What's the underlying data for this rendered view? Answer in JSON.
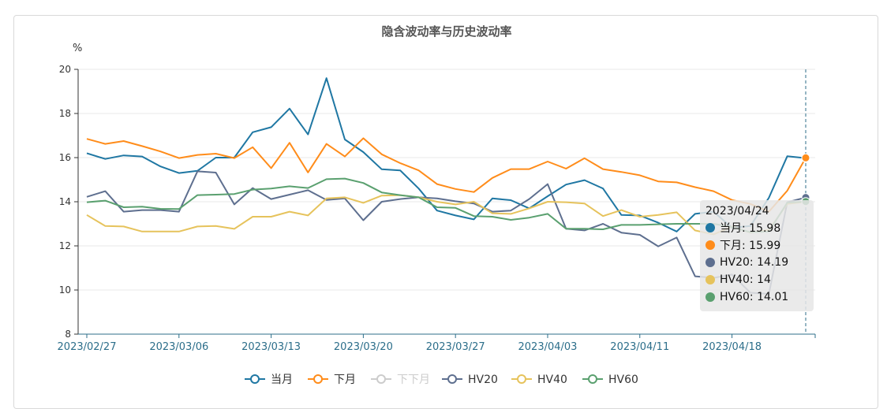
{
  "chart_data": {
    "type": "line",
    "title": "隐含波动率与历史波动率",
    "ylabel": "%",
    "ylim": [
      8,
      20
    ],
    "yticks": [
      8,
      10,
      12,
      14,
      16,
      18,
      20
    ],
    "x_tick_labels": [
      "2023/02/27",
      "2023/03/06",
      "2023/03/13",
      "2023/03/20",
      "2023/03/27",
      "2023/04/03",
      "2023/04/11",
      "2023/04/18"
    ],
    "x_tick_index": [
      0,
      5,
      10,
      15,
      20,
      25,
      30,
      35
    ],
    "n_points": 40,
    "series": [
      {
        "name": "当月",
        "color": "#1f77a3",
        "enabled": true,
        "values": [
          16.2,
          15.94,
          16.1,
          16.05,
          15.6,
          15.3,
          15.4,
          16.0,
          16.0,
          17.15,
          17.38,
          18.22,
          17.05,
          19.6,
          16.82,
          16.25,
          15.47,
          15.42,
          14.6,
          13.6,
          13.38,
          13.2,
          14.15,
          14.07,
          13.7,
          14.25,
          14.78,
          14.98,
          14.6,
          13.4,
          13.38,
          13.05,
          12.65,
          13.45,
          13.55,
          12.82,
          12.9,
          14.18,
          16.06,
          15.98
        ]
      },
      {
        "name": "下月",
        "color": "#ff8c1a",
        "enabled": true,
        "values": [
          16.85,
          16.62,
          16.75,
          16.52,
          16.28,
          15.98,
          16.12,
          16.18,
          15.98,
          16.47,
          15.52,
          16.67,
          15.33,
          16.62,
          16.05,
          16.88,
          16.15,
          15.75,
          15.42,
          14.8,
          14.58,
          14.44,
          15.08,
          15.48,
          15.48,
          15.82,
          15.5,
          15.97,
          15.48,
          15.35,
          15.2,
          14.92,
          14.88,
          14.66,
          14.48,
          14.08,
          13.9,
          13.55,
          14.5,
          15.99
        ]
      },
      {
        "name": "下下月",
        "color": "#cccccc",
        "enabled": false,
        "values": []
      },
      {
        "name": "HV20",
        "color": "#5e6f8f",
        "enabled": true,
        "values": [
          14.22,
          14.48,
          13.55,
          13.62,
          13.62,
          13.55,
          15.38,
          15.32,
          13.88,
          14.62,
          14.12,
          14.32,
          14.52,
          14.08,
          14.15,
          13.16,
          14.0,
          14.12,
          14.2,
          14.15,
          14.02,
          13.92,
          13.55,
          13.6,
          14.12,
          14.8,
          12.78,
          12.7,
          13.0,
          12.6,
          12.5,
          11.98,
          12.38,
          10.62,
          10.55,
          10.7,
          9.88,
          9.82,
          13.98,
          14.19
        ]
      },
      {
        "name": "HV40",
        "color": "#e6c35c",
        "enabled": true,
        "values": [
          13.4,
          12.9,
          12.88,
          12.65,
          12.65,
          12.65,
          12.88,
          12.9,
          12.77,
          13.32,
          13.32,
          13.55,
          13.38,
          14.15,
          14.2,
          13.95,
          14.28,
          14.3,
          14.2,
          14.0,
          13.88,
          14.0,
          13.48,
          13.45,
          13.7,
          14.0,
          13.98,
          13.92,
          13.35,
          13.62,
          13.32,
          13.4,
          13.52,
          12.7,
          12.52,
          12.88,
          12.6,
          12.72,
          13.9,
          14.0
        ]
      },
      {
        "name": "HV60",
        "color": "#5aa06f",
        "enabled": true,
        "values": [
          13.98,
          14.05,
          13.75,
          13.78,
          13.68,
          13.67,
          14.3,
          14.32,
          14.35,
          14.55,
          14.6,
          14.7,
          14.62,
          15.02,
          15.05,
          14.85,
          14.42,
          14.3,
          14.2,
          13.75,
          13.72,
          13.35,
          13.32,
          13.18,
          13.28,
          13.45,
          12.78,
          12.78,
          12.75,
          12.95,
          12.95,
          12.98,
          13.0,
          13.0,
          13.0,
          12.85,
          12.62,
          12.65,
          13.96,
          14.01
        ]
      }
    ],
    "legend_position": "bottom",
    "tooltip": {
      "date": "2023/04/24",
      "rows": [
        {
          "label": "当月: 15.98",
          "color": "#1f77a3"
        },
        {
          "label": "下月: 15.99",
          "color": "#ff8c1a"
        },
        {
          "label": "HV20: 14.19",
          "color": "#5e6f8f"
        },
        {
          "label": "HV40: 14",
          "color": "#e6c35c"
        },
        {
          "label": "HV60: 14.01",
          "color": "#5aa06f"
        }
      ]
    }
  }
}
